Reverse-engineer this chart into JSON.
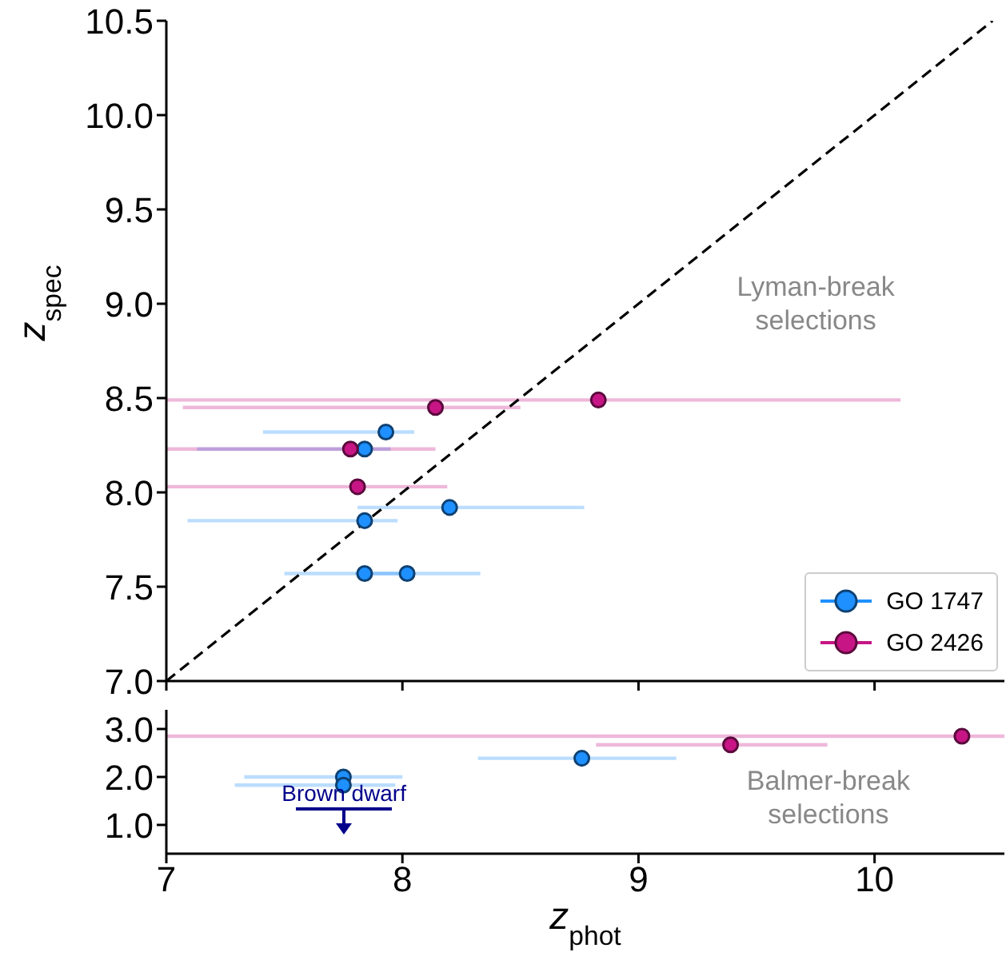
{
  "chart_data": [
    {
      "type": "scatter",
      "ylabel": "z$_{spec}$",
      "xlim": [
        7,
        10.55
      ],
      "xticks": [
        7,
        8,
        9,
        10
      ],
      "ylim": [
        7,
        10.5
      ],
      "yticks": [
        {
          "value": 7,
          "label": "7.0"
        },
        7.5,
        {
          "value": 8,
          "label": "8.0"
        },
        8.5,
        {
          "value": 9,
          "label": "9.0"
        },
        9.5,
        {
          "value": 10,
          "label": "10.0"
        },
        10.5
      ],
      "tick_labels": "y",
      "legend": "bottom right",
      "marker": "circle",
      "annotations": [
        "Lyman-break selections"
      ],
      "series": [
        {
          "type": "line",
          "x": [
            7,
            10.5
          ],
          "values": [
            7,
            10.5
          ],
          "color": "#000000",
          "line_style": "dashed",
          "marker": "none"
        },
        {
          "name": "GO 1747",
          "color": "#1e90ff",
          "x": [
            7.93,
            7.84,
            8.2,
            7.84,
            7.84,
            8.02
          ],
          "values": [
            8.32,
            8.23,
            7.92,
            7.85,
            7.57,
            7.57
          ],
          "xerrors": [
            [
              7.41,
              8.05
            ],
            [
              7.13,
              7.95
            ],
            [
              7.81,
              8.77
            ],
            [
              7.09,
              7.98
            ],
            [
              7.5,
              8.0
            ],
            [
              7.8,
              8.33
            ]
          ]
        },
        {
          "name": "GO 2426",
          "color": "#c71585",
          "x": [
            8.83,
            8.14,
            7.78,
            7.81
          ],
          "values": [
            8.49,
            8.45,
            8.23,
            8.03
          ],
          "xerrors": [
            [
              7.0,
              10.11
            ],
            [
              7.07,
              8.5
            ],
            [
              7.0,
              8.14
            ],
            [
              7.0,
              8.19
            ]
          ]
        }
      ]
    },
    {
      "type": "scatter",
      "xlabel": "z$_{phot}$",
      "xlim": [
        7,
        10.55
      ],
      "xticks": [
        7,
        8,
        9,
        10
      ],
      "ylim": [
        0.4,
        3.4
      ],
      "yticks": [
        {
          "value": 1,
          "label": "1.0"
        },
        {
          "value": 2,
          "label": "2.0"
        },
        {
          "value": 3,
          "label": "3.0"
        }
      ],
      "marker": "circle",
      "annotations": [
        "Brown dwarf",
        "Balmer-break selections"
      ],
      "series": [
        {
          "color": "#1e90ff",
          "x": [
            8.76,
            7.75,
            7.75
          ],
          "values": [
            2.39,
            2.0,
            1.83
          ],
          "xerrors": [
            [
              8.32,
              9.16
            ],
            [
              7.33,
              8.0
            ],
            [
              7.29,
              7.97
            ]
          ]
        },
        {
          "color": "#c71585",
          "x": [
            9.39,
            10.37
          ],
          "values": [
            2.67,
            2.85
          ],
          "xerrors": [
            [
              8.82,
              9.8
            ],
            [
              7.0,
              10.55
            ]
          ]
        }
      ]
    }
  ]
}
